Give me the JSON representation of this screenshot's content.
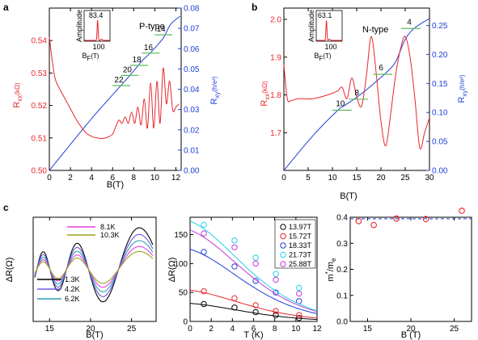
{
  "chart_data": [
    {
      "panel": "a",
      "type": "line",
      "xlabel": "B(T)",
      "ylabel_left": "Rxx(kΩ)",
      "ylabel_right": "Rxy(h/e2)",
      "xlim": [
        0,
        12.5
      ],
      "ylim_left": [
        0.5,
        0.55
      ],
      "ylim_right": [
        0,
        0.08
      ],
      "x_ticks": [
        0,
        2,
        4,
        6,
        8,
        10,
        12
      ],
      "y_ticks_left": [
        0.5,
        0.51,
        0.52,
        0.53,
        0.54
      ],
      "y_ticks_right": [
        0.0,
        0.01,
        0.02,
        0.03,
        0.04,
        0.05,
        0.06,
        0.07,
        0.08
      ],
      "tag": "P-type",
      "series": [
        {
          "axis": "left",
          "color": "#e8262a",
          "x": [
            0,
            0.5,
            1,
            1.5,
            2,
            2.5,
            3,
            3.5,
            4,
            4.5,
            5,
            5.5,
            6,
            6.3,
            6.6,
            6.9,
            7.2,
            7.5,
            7.8,
            8.1,
            8.4,
            8.7,
            9.0,
            9.3,
            9.6,
            9.9,
            10.2,
            10.5,
            10.8,
            11.1,
            11.4,
            11.7,
            12.0,
            12.3
          ],
          "y": [
            0.541,
            0.529,
            0.525,
            0.522,
            0.519,
            0.516,
            0.5135,
            0.5115,
            0.5105,
            0.51,
            0.5098,
            0.5102,
            0.5112,
            0.5135,
            0.5155,
            0.5145,
            0.5165,
            0.5145,
            0.518,
            0.5145,
            0.5195,
            0.514,
            0.522,
            0.513,
            0.527,
            0.513,
            0.5275,
            0.5145,
            0.5315,
            0.5205,
            0.5275,
            0.5185,
            0.5195,
            0.5205
          ]
        },
        {
          "axis": "right",
          "color": "#1f3fd6",
          "x": [
            0,
            4,
            7.5,
            8.8,
            9.4,
            10.3,
            10.9,
            11.5,
            12.4
          ],
          "y": [
            0.0,
            0.0255,
            0.046,
            0.054,
            0.057,
            0.062,
            0.066,
            0.072,
            0.076
          ]
        }
      ],
      "plateaus": [
        {
          "label": "22",
          "x": 6.9,
          "y": 0.043
        },
        {
          "label": "20",
          "x": 7.7,
          "y": 0.048
        },
        {
          "label": "18",
          "x": 8.6,
          "y": 0.053
        },
        {
          "label": "16",
          "x": 9.7,
          "y": 0.059
        },
        {
          "label": "14",
          "x": 10.9,
          "y": 0.068
        }
      ],
      "inset": {
        "value": "83.4",
        "ylabel": "Amplitude",
        "xlabel": "BF(T)",
        "xtick": "100",
        "peak_x": 83.4
      }
    },
    {
      "panel": "b",
      "type": "line",
      "xlabel": "B(T)",
      "ylabel_left": "Rxx(kΩ)",
      "ylabel_right": "Rxy(h/e2)",
      "xlim": [
        0,
        30
      ],
      "ylim_left": [
        1.6,
        2.03
      ],
      "ylim_right": [
        0,
        0.28
      ],
      "x_ticks": [
        0,
        5,
        10,
        15,
        20,
        25,
        30
      ],
      "y_ticks_left": [
        1.7,
        1.8,
        1.9,
        2.0
      ],
      "y_ticks_right": [
        0.0,
        0.05,
        0.1,
        0.15,
        0.2,
        0.25
      ],
      "tag": "N-type",
      "series": [
        {
          "axis": "left",
          "color": "#e8262a",
          "x": [
            0,
            0.7,
            1.5,
            3,
            6,
            9,
            11,
            12,
            13,
            14,
            15,
            16,
            17,
            18,
            19,
            20,
            21,
            22,
            23,
            24,
            25,
            26,
            27,
            28,
            29,
            30
          ],
          "y": [
            1.88,
            1.79,
            1.785,
            1.79,
            1.79,
            1.8,
            1.81,
            1.82,
            1.79,
            1.845,
            1.795,
            1.77,
            1.85,
            1.955,
            1.86,
            1.73,
            1.665,
            1.75,
            1.85,
            1.92,
            1.955,
            1.9,
            1.79,
            1.66,
            1.7,
            1.74
          ]
        },
        {
          "axis": "right",
          "color": "#1f3fd6",
          "x": [
            0,
            6,
            11,
            12.5,
            15,
            18,
            21,
            23,
            25,
            27,
            30
          ],
          "y": [
            0,
            0.06,
            0.103,
            0.112,
            0.126,
            0.146,
            0.168,
            0.187,
            0.226,
            0.246,
            0.262
          ]
        }
      ],
      "plateaus": [
        {
          "label": "10",
          "x": 12.3,
          "y": 0.108
        },
        {
          "label": "8",
          "x": 15.7,
          "y": 0.127
        },
        {
          "label": "6",
          "x": 20.7,
          "y": 0.17
        },
        {
          "label": "4",
          "x": 26.5,
          "y": 0.249
        }
      ],
      "inset": {
        "value": "63.1",
        "ylabel": "Amplitude",
        "xlabel": "BF(T)",
        "xtick": "100",
        "peak_x": 63.1
      }
    },
    {
      "panel": "c",
      "type": "line",
      "xlabel": "B(T)",
      "ylabel": "ΔR(Ω)",
      "xlim": [
        13,
        28
      ],
      "ylim": [
        -190,
        190
      ],
      "x_ticks": [
        15,
        20,
        25
      ],
      "series": [
        {
          "name": "1.3K",
          "color": "#000000",
          "amplitude": 1.0
        },
        {
          "name": "4.2K",
          "color": "#6a5ae8",
          "amplitude": 0.84
        },
        {
          "name": "6.2K",
          "color": "#2f9fb6",
          "amplitude": 0.69
        },
        {
          "name": "8.1K",
          "color": "#e93ee0",
          "amplitude": 0.55
        },
        {
          "name": "10.3K",
          "color": "#9ea21a",
          "amplitude": 0.43
        }
      ]
    },
    {
      "panel": "c2",
      "type": "scatter",
      "xlabel": "T (K)",
      "ylabel": "ΔR(Ω)",
      "xlim": [
        0,
        12
      ],
      "ylim": [
        0,
        180
      ],
      "x_ticks": [
        0,
        2,
        4,
        6,
        8,
        10,
        12
      ],
      "y_ticks": [
        0,
        50,
        100,
        150
      ],
      "x": [
        1.3,
        4.2,
        6.2,
        8.1,
        10.3
      ],
      "series": [
        {
          "name": "13.97T",
          "color": "#000000",
          "values": [
            30,
            24,
            16,
            11,
            6
          ]
        },
        {
          "name": "15.72T",
          "color": "#e8262a",
          "values": [
            52,
            40,
            28,
            18,
            11
          ]
        },
        {
          "name": "18.33T",
          "color": "#1f3fd6",
          "values": [
            120,
            95,
            70,
            50,
            35
          ]
        },
        {
          "name": "21.73T",
          "color": "#20d0e8",
          "values": [
            167,
            140,
            110,
            82,
            58
          ]
        },
        {
          "name": "25.88T",
          "color": "#c23ad8",
          "values": [
            152,
            128,
            100,
            72,
            48
          ]
        }
      ]
    },
    {
      "panel": "c3",
      "type": "scatter",
      "xlabel": "B (T)",
      "ylabel": "m*/me",
      "xlim": [
        13,
        27
      ],
      "ylim": [
        0,
        0.4
      ],
      "x_ticks": [
        15,
        20,
        25
      ],
      "y_ticks": [
        0.0,
        0.1,
        0.2,
        0.3,
        0.4
      ],
      "x": [
        13.97,
        15.72,
        18.33,
        21.73,
        25.88
      ],
      "values": [
        0.385,
        0.37,
        0.395,
        0.393,
        0.425
      ],
      "mean_line": 0.394
    }
  ],
  "colors": {
    "red": "#e8262a",
    "blue": "#1f3fd6"
  }
}
